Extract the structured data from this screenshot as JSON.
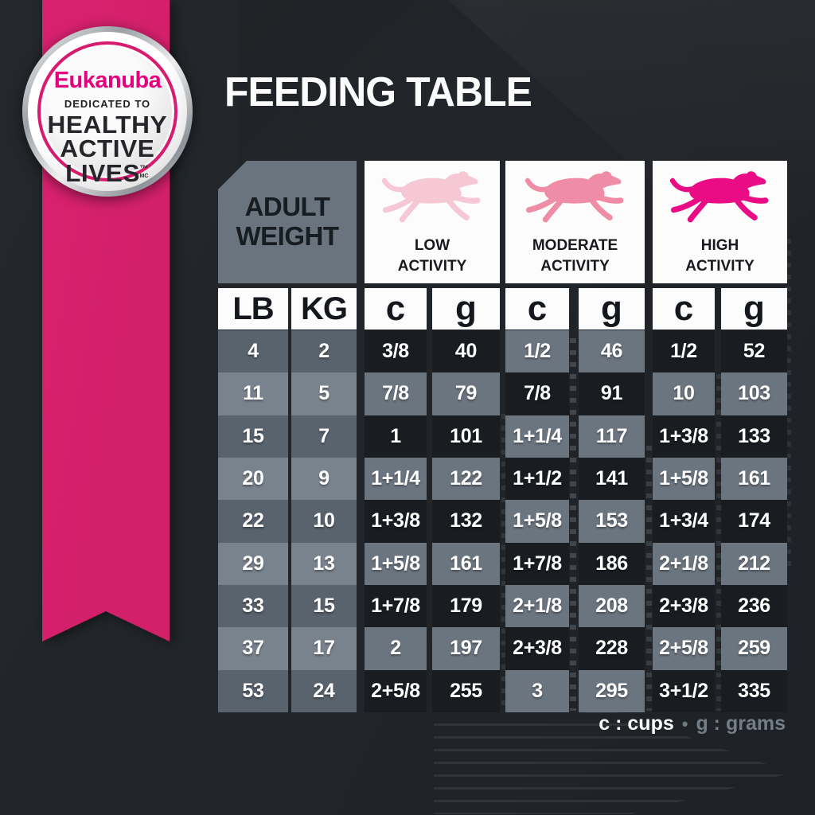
{
  "badge": {
    "brand": "Eukanuba",
    "dedicated": "DEDICATED TO",
    "line1": "HEALTHY",
    "line2": "ACTIVE",
    "line3": "LIVES",
    "tm": "™",
    "mc": "MC"
  },
  "title": "FEEDING TABLE",
  "table": {
    "corner": {
      "line1": "ADULT",
      "line2": "WEIGHT"
    },
    "activity_headers": [
      {
        "line1": "LOW",
        "line2": "ACTIVITY",
        "dog_color": "#f6c7d5"
      },
      {
        "line1": "MODERATE",
        "line2": "ACTIVITY",
        "dog_color": "#ef8ca6"
      },
      {
        "line1": "HIGH",
        "line2": "ACTIVITY",
        "dog_color": "#e90c85"
      }
    ],
    "unit_headers": [
      "LB",
      "KG",
      "c",
      "g",
      "c",
      "g",
      "c",
      "g"
    ],
    "rows": [
      [
        "4",
        "2",
        "3/8",
        "40",
        "1/2",
        "46",
        "1/2",
        "52"
      ],
      [
        "11",
        "5",
        "7/8",
        "79",
        "7/8",
        "91",
        "10",
        "103"
      ],
      [
        "15",
        "7",
        "1",
        "101",
        "1+1/4",
        "117",
        "1+3/8",
        "133"
      ],
      [
        "20",
        "9",
        "1+1/4",
        "122",
        "1+1/2",
        "141",
        "1+5/8",
        "161"
      ],
      [
        "22",
        "10",
        "1+3/8",
        "132",
        "1+5/8",
        "153",
        "1+3/4",
        "174"
      ],
      [
        "29",
        "13",
        "1+5/8",
        "161",
        "1+7/8",
        "186",
        "2+1/8",
        "212"
      ],
      [
        "33",
        "15",
        "1+7/8",
        "179",
        "2+1/8",
        "208",
        "2+3/8",
        "236"
      ],
      [
        "37",
        "17",
        "2",
        "197",
        "2+3/8",
        "228",
        "2+5/8",
        "259"
      ],
      [
        "53",
        "24",
        "2+5/8",
        "255",
        "3",
        "295",
        "3+1/2",
        "335"
      ]
    ]
  },
  "legend": {
    "cups": "c : cups",
    "separator": "•",
    "grams": "g : grams"
  },
  "colors": {
    "background": "#212529",
    "ribbon_pink": "#d4216c",
    "brand_pink": "#e5007d",
    "badge_ring_pink": "#d81b6f",
    "cell_dark": "#191d22",
    "cell_grey": "#6b7580",
    "weight_col_dark": "#59636d",
    "weight_col_light": "#79838d",
    "header_white": "#fcfcfc"
  },
  "chart_data": {
    "type": "table",
    "title": "FEEDING TABLE",
    "columns": [
      "LB",
      "KG",
      "LOW ACTIVITY c",
      "LOW ACTIVITY g",
      "MODERATE ACTIVITY c",
      "MODERATE ACTIVITY g",
      "HIGH ACTIVITY c",
      "HIGH ACTIVITY g"
    ],
    "rows": [
      [
        "4",
        "2",
        "3/8",
        "40",
        "1/2",
        "46",
        "1/2",
        "52"
      ],
      [
        "11",
        "5",
        "7/8",
        "79",
        "7/8",
        "91",
        "10",
        "103"
      ],
      [
        "15",
        "7",
        "1",
        "101",
        "1+1/4",
        "117",
        "1+3/8",
        "133"
      ],
      [
        "20",
        "9",
        "1+1/4",
        "122",
        "1+1/2",
        "141",
        "1+5/8",
        "161"
      ],
      [
        "22",
        "10",
        "1+3/8",
        "132",
        "1+5/8",
        "153",
        "1+3/4",
        "174"
      ],
      [
        "29",
        "13",
        "1+5/8",
        "161",
        "1+7/8",
        "186",
        "2+1/8",
        "212"
      ],
      [
        "33",
        "15",
        "1+7/8",
        "179",
        "2+1/8",
        "208",
        "2+3/8",
        "236"
      ],
      [
        "37",
        "17",
        "2",
        "197",
        "2+3/8",
        "228",
        "2+5/8",
        "259"
      ],
      [
        "53",
        "24",
        "2+5/8",
        "255",
        "3",
        "295",
        "3+1/2",
        "335"
      ]
    ],
    "units_note": "c : cups • g : grams"
  }
}
